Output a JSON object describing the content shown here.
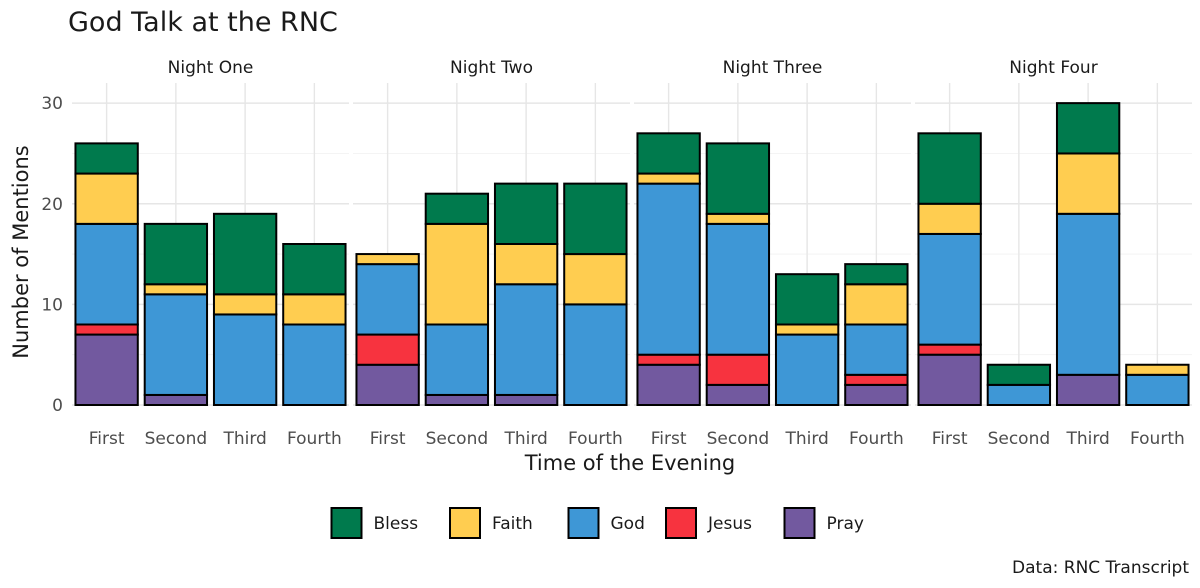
{
  "chart_data": {
    "type": "bar",
    "stacked": true,
    "title": "God Talk at the RNC",
    "xlabel": "Time of the Evening",
    "ylabel": "Number of Mentions",
    "caption": "Data: RNC Transcript",
    "ylim": [
      0,
      32
    ],
    "yticks": [
      0,
      10,
      20,
      30
    ],
    "categories": [
      "First",
      "Second",
      "Third",
      "Fourth"
    ],
    "legend_position": "bottom",
    "series_order": [
      "Pray",
      "Jesus",
      "God",
      "Faith",
      "Bless"
    ],
    "legend": [
      {
        "name": "Bless",
        "color": "#007A4D"
      },
      {
        "name": "Faith",
        "color": "#FFCD50"
      },
      {
        "name": "God",
        "color": "#3E97D6"
      },
      {
        "name": "Jesus",
        "color": "#F7333F"
      },
      {
        "name": "Pray",
        "color": "#72599F"
      }
    ],
    "facets": [
      {
        "name": "Night One",
        "bars": [
          {
            "category": "First",
            "Pray": 7,
            "Jesus": 1,
            "God": 10,
            "Faith": 5,
            "Bless": 3
          },
          {
            "category": "Second",
            "Pray": 1,
            "Jesus": 0,
            "God": 10,
            "Faith": 1,
            "Bless": 6
          },
          {
            "category": "Third",
            "Pray": 0,
            "Jesus": 0,
            "God": 9,
            "Faith": 2,
            "Bless": 8
          },
          {
            "category": "Fourth",
            "Pray": 0,
            "Jesus": 0,
            "God": 8,
            "Faith": 3,
            "Bless": 5
          }
        ]
      },
      {
        "name": "Night Two",
        "bars": [
          {
            "category": "First",
            "Pray": 4,
            "Jesus": 3,
            "God": 7,
            "Faith": 1,
            "Bless": 0
          },
          {
            "category": "Second",
            "Pray": 1,
            "Jesus": 0,
            "God": 7,
            "Faith": 10,
            "Bless": 3
          },
          {
            "category": "Third",
            "Pray": 1,
            "Jesus": 0,
            "God": 11,
            "Faith": 4,
            "Bless": 6
          },
          {
            "category": "Fourth",
            "Pray": 0,
            "Jesus": 0,
            "God": 10,
            "Faith": 5,
            "Bless": 7
          }
        ]
      },
      {
        "name": "Night Three",
        "bars": [
          {
            "category": "First",
            "Pray": 4,
            "Jesus": 1,
            "God": 17,
            "Faith": 1,
            "Bless": 4
          },
          {
            "category": "Second",
            "Pray": 2,
            "Jesus": 3,
            "God": 13,
            "Faith": 1,
            "Bless": 7
          },
          {
            "category": "Third",
            "Pray": 0,
            "Jesus": 0,
            "God": 7,
            "Faith": 1,
            "Bless": 5
          },
          {
            "category": "Fourth",
            "Pray": 2,
            "Jesus": 1,
            "God": 5,
            "Faith": 4,
            "Bless": 2
          }
        ]
      },
      {
        "name": "Night Four",
        "bars": [
          {
            "category": "First",
            "Pray": 5,
            "Jesus": 1,
            "God": 11,
            "Faith": 3,
            "Bless": 7
          },
          {
            "category": "Second",
            "Pray": 0,
            "Jesus": 0,
            "God": 2,
            "Faith": 0,
            "Bless": 2
          },
          {
            "category": "Third",
            "Pray": 3,
            "Jesus": 0,
            "God": 16,
            "Faith": 6,
            "Bless": 5
          },
          {
            "category": "Fourth",
            "Pray": 0,
            "Jesus": 0,
            "God": 3,
            "Faith": 1,
            "Bless": 0
          }
        ]
      }
    ]
  }
}
